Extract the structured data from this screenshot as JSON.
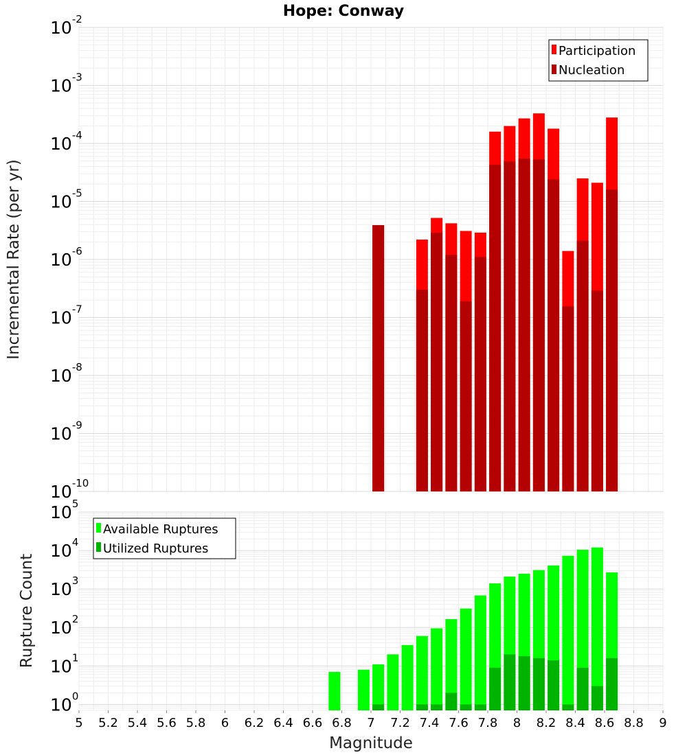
{
  "chart_data": [
    {
      "type": "bar",
      "title": "Hope: Conway",
      "ylabel": "Incremental Rate (per yr)",
      "xlim": [
        5,
        9
      ],
      "ylim": [
        1e-10,
        0.01
      ],
      "yscale": "log",
      "grid": true,
      "legend": "top-right",
      "y_ticks": [
        {
          "base": "10",
          "exp": "-10",
          "value": 1e-10
        },
        {
          "base": "10",
          "exp": "-9",
          "value": 1e-09
        },
        {
          "base": "10",
          "exp": "-8",
          "value": 1e-08
        },
        {
          "base": "10",
          "exp": "-7",
          "value": 1e-07
        },
        {
          "base": "10",
          "exp": "-6",
          "value": 1e-06
        },
        {
          "base": "10",
          "exp": "-5",
          "value": 1e-05
        },
        {
          "base": "10",
          "exp": "-4",
          "value": 0.0001
        },
        {
          "base": "10",
          "exp": "-3",
          "value": 0.001
        },
        {
          "base": "10",
          "exp": "-2",
          "value": 0.01
        }
      ],
      "x": [
        7.05,
        7.35,
        7.45,
        7.55,
        7.65,
        7.75,
        7.85,
        7.95,
        8.05,
        8.15,
        8.25,
        8.35,
        8.45,
        8.55,
        8.65
      ],
      "series": [
        {
          "name": "Participation",
          "color": "#ff0000",
          "values": [
            3.9e-06,
            2.2e-06,
            5.2e-06,
            4.2e-06,
            3.1e-06,
            2.9e-06,
            0.00016,
            0.0002,
            0.00027,
            0.00033,
            0.00018,
            1.4e-06,
            2.5e-05,
            2.1e-05,
            0.00028
          ]
        },
        {
          "name": "Nucleation",
          "color": "#b30000",
          "values": [
            3.9e-06,
            3e-07,
            2.9e-06,
            1.2e-06,
            1.9e-07,
            1.1e-06,
            4.3e-05,
            4.9e-05,
            5.5e-05,
            5.3e-05,
            2.4e-05,
            1.55e-07,
            2.1e-06,
            2.9e-07,
            1.6e-05
          ]
        }
      ]
    },
    {
      "type": "bar",
      "ylabel": "Rupture Count",
      "xlabel": "Magnitude",
      "xlim": [
        5,
        9
      ],
      "ylim": [
        0.7,
        100000
      ],
      "yscale": "log",
      "grid": true,
      "legend": "top-left",
      "y_ticks": [
        {
          "base": "10",
          "exp": "0",
          "value": 1
        },
        {
          "base": "10",
          "exp": "1",
          "value": 10
        },
        {
          "base": "10",
          "exp": "2",
          "value": 100
        },
        {
          "base": "10",
          "exp": "3",
          "value": 1000
        },
        {
          "base": "10",
          "exp": "4",
          "value": 10000
        },
        {
          "base": "10",
          "exp": "5",
          "value": 100000
        }
      ],
      "x_ticks": [
        "5",
        "5.2",
        "5.4",
        "5.6",
        "5.8",
        "6",
        "6.2",
        "6.4",
        "6.6",
        "6.8",
        "7",
        "7.2",
        "7.4",
        "7.6",
        "7.8",
        "8",
        "8.2",
        "8.4",
        "8.6",
        "8.8",
        "9"
      ],
      "x": [
        6.75,
        6.95,
        7.05,
        7.15,
        7.25,
        7.35,
        7.45,
        7.55,
        7.65,
        7.75,
        7.85,
        7.95,
        8.05,
        8.15,
        8.25,
        8.35,
        8.45,
        8.55,
        8.65
      ],
      "series": [
        {
          "name": "Available Ruptures",
          "color": "#00ff00",
          "values": [
            7,
            8,
            11,
            20,
            35,
            60,
            95,
            165,
            310,
            680,
            1400,
            2100,
            2500,
            3100,
            4100,
            7300,
            10500,
            12000,
            2700
          ]
        },
        {
          "name": "Utilized Ruptures",
          "color": "#00b300",
          "values": [
            0,
            0,
            1,
            0,
            0,
            1,
            1,
            2,
            1,
            1,
            9,
            20,
            18,
            16,
            14,
            1,
            9,
            3,
            16
          ]
        }
      ]
    }
  ]
}
